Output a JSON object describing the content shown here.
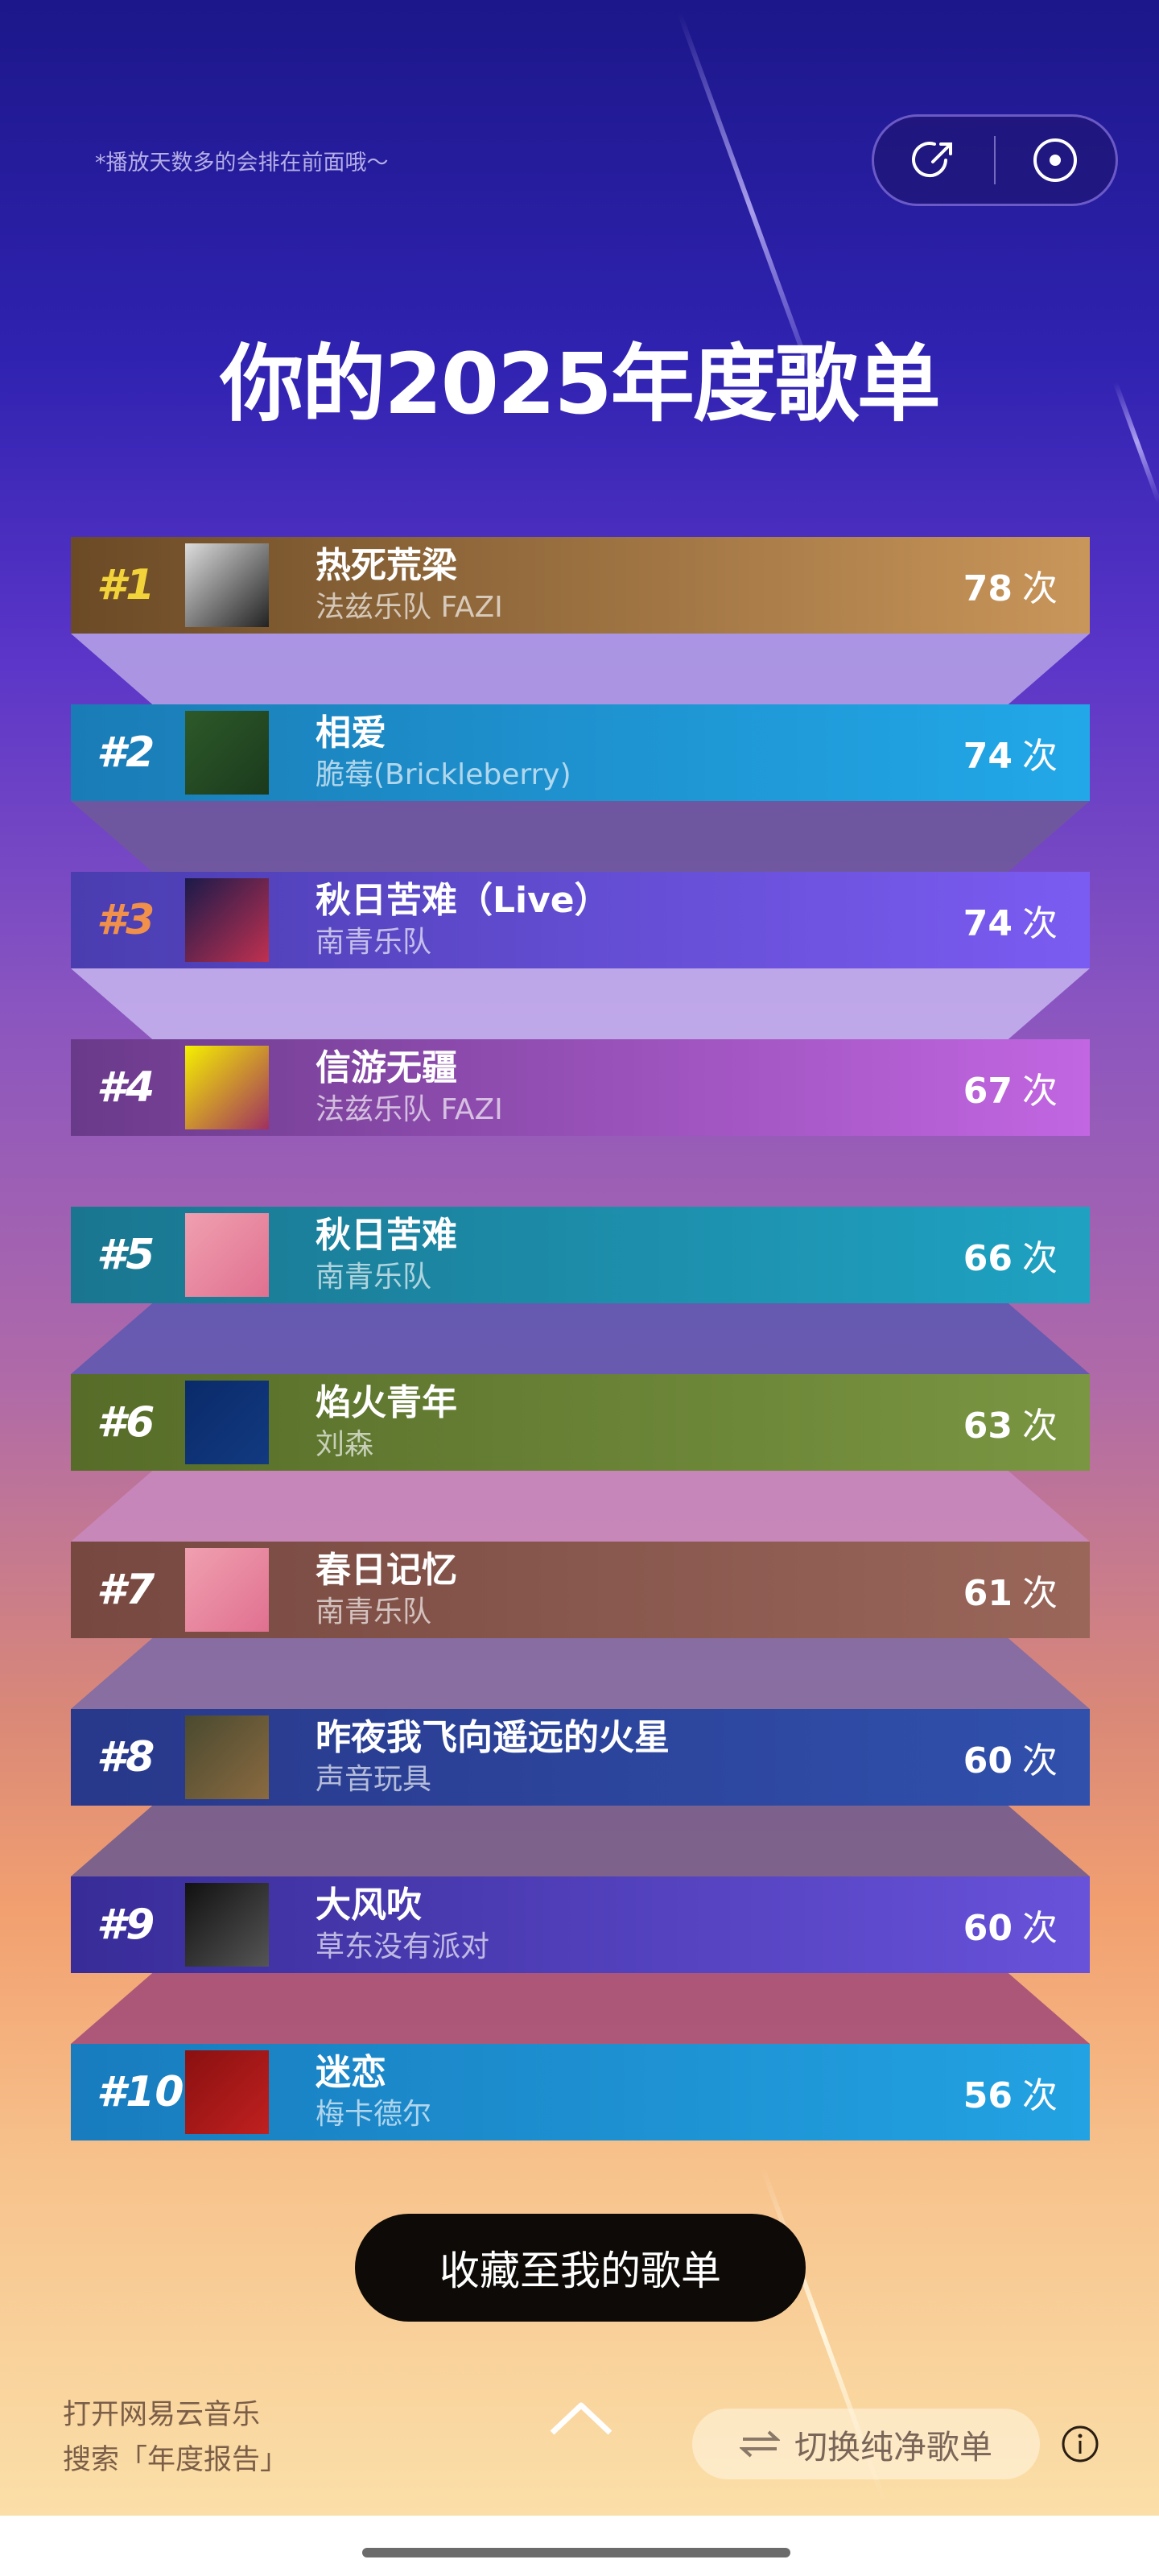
{
  "header": {
    "hint": "*播放天数多的会排在前面哦～",
    "title": "你的2025年度歌单",
    "share_icon": "share-icon",
    "record_icon": "record-icon"
  },
  "songs": [
    {
      "rank": "#1",
      "title": "热死荒梁",
      "artist": "法兹乐队 FAZI",
      "count": "78",
      "unit": "次",
      "colors": [
        "#6b4a26",
        "#c9965a"
      ],
      "rank_color": "#f2d33a",
      "cover": [
        "#ddd",
        "#222"
      ]
    },
    {
      "rank": "#2",
      "title": "相爱",
      "artist": "脆莓(Brickleberry)",
      "count": "74",
      "unit": "次",
      "colors": [
        "#1a7cb6",
        "#22a8e8"
      ],
      "rank_color": "#ffffff",
      "cover": [
        "#2d5a2a",
        "#1b3a1c"
      ]
    },
    {
      "rank": "#3",
      "title": "秋日苦难（Live）",
      "artist": "南青乐队",
      "count": "74",
      "unit": "次",
      "colors": [
        "#4a3db0",
        "#7b5cf2"
      ],
      "rank_color": "#f0904a",
      "cover": [
        "#1a1a4a",
        "#c03050"
      ]
    },
    {
      "rank": "#4",
      "title": "信游无疆",
      "artist": "法兹乐队 FAZI",
      "count": "67",
      "unit": "次",
      "colors": [
        "#6a3a8a",
        "#c266e2"
      ],
      "rank_color": "#ffffff",
      "cover": [
        "#f5f000",
        "#a03060"
      ]
    },
    {
      "rank": "#5",
      "title": "秋日苦难",
      "artist": "南青乐队",
      "count": "66",
      "unit": "次",
      "colors": [
        "#1a7690",
        "#1fa2c2"
      ],
      "rank_color": "#ffffff",
      "cover": [
        "#f0a0b0",
        "#e07090"
      ]
    },
    {
      "rank": "#6",
      "title": "焰火青年",
      "artist": "刘森",
      "count": "63",
      "unit": "次",
      "colors": [
        "#566c28",
        "#7a9642"
      ],
      "rank_color": "#ffffff",
      "cover": [
        "#0a2a6a",
        "#123a80"
      ]
    },
    {
      "rank": "#7",
      "title": "春日记忆",
      "artist": "南青乐队",
      "count": "61",
      "unit": "次",
      "colors": [
        "#764840",
        "#9a665a"
      ],
      "rank_color": "#ffffff",
      "cover": [
        "#f0a0b0",
        "#e07090"
      ]
    },
    {
      "rank": "#8",
      "title": "昨夜我飞向遥远的火星",
      "artist": "声音玩具",
      "count": "60",
      "unit": "次",
      "colors": [
        "#28388a",
        "#3050ac"
      ],
      "rank_color": "#ffffff",
      "cover": [
        "#4a4a30",
        "#8a6a40"
      ]
    },
    {
      "rank": "#9",
      "title": "大风吹",
      "artist": "草东没有派对",
      "count": "60",
      "unit": "次",
      "colors": [
        "#382c98",
        "#6852da"
      ],
      "rank_color": "#ffffff",
      "cover": [
        "#111",
        "#555"
      ]
    },
    {
      "rank": "#10",
      "title": "迷恋",
      "artist": "梅卡德尔",
      "count": "56",
      "unit": "次",
      "colors": [
        "#187cbe",
        "#22a2e2"
      ],
      "rank_color": "#ffffff",
      "cover": [
        "#8a1010",
        "#c02020"
      ]
    }
  ],
  "footer": {
    "save_label": "收藏至我的歌单",
    "line1": "打开网易云音乐",
    "line2": "搜索「年度报告」",
    "switch_label": "切换纯净歌单",
    "switch_icon": "swap-icon",
    "info_icon": "info-icon",
    "up_icon": "chevron-up-icon"
  }
}
